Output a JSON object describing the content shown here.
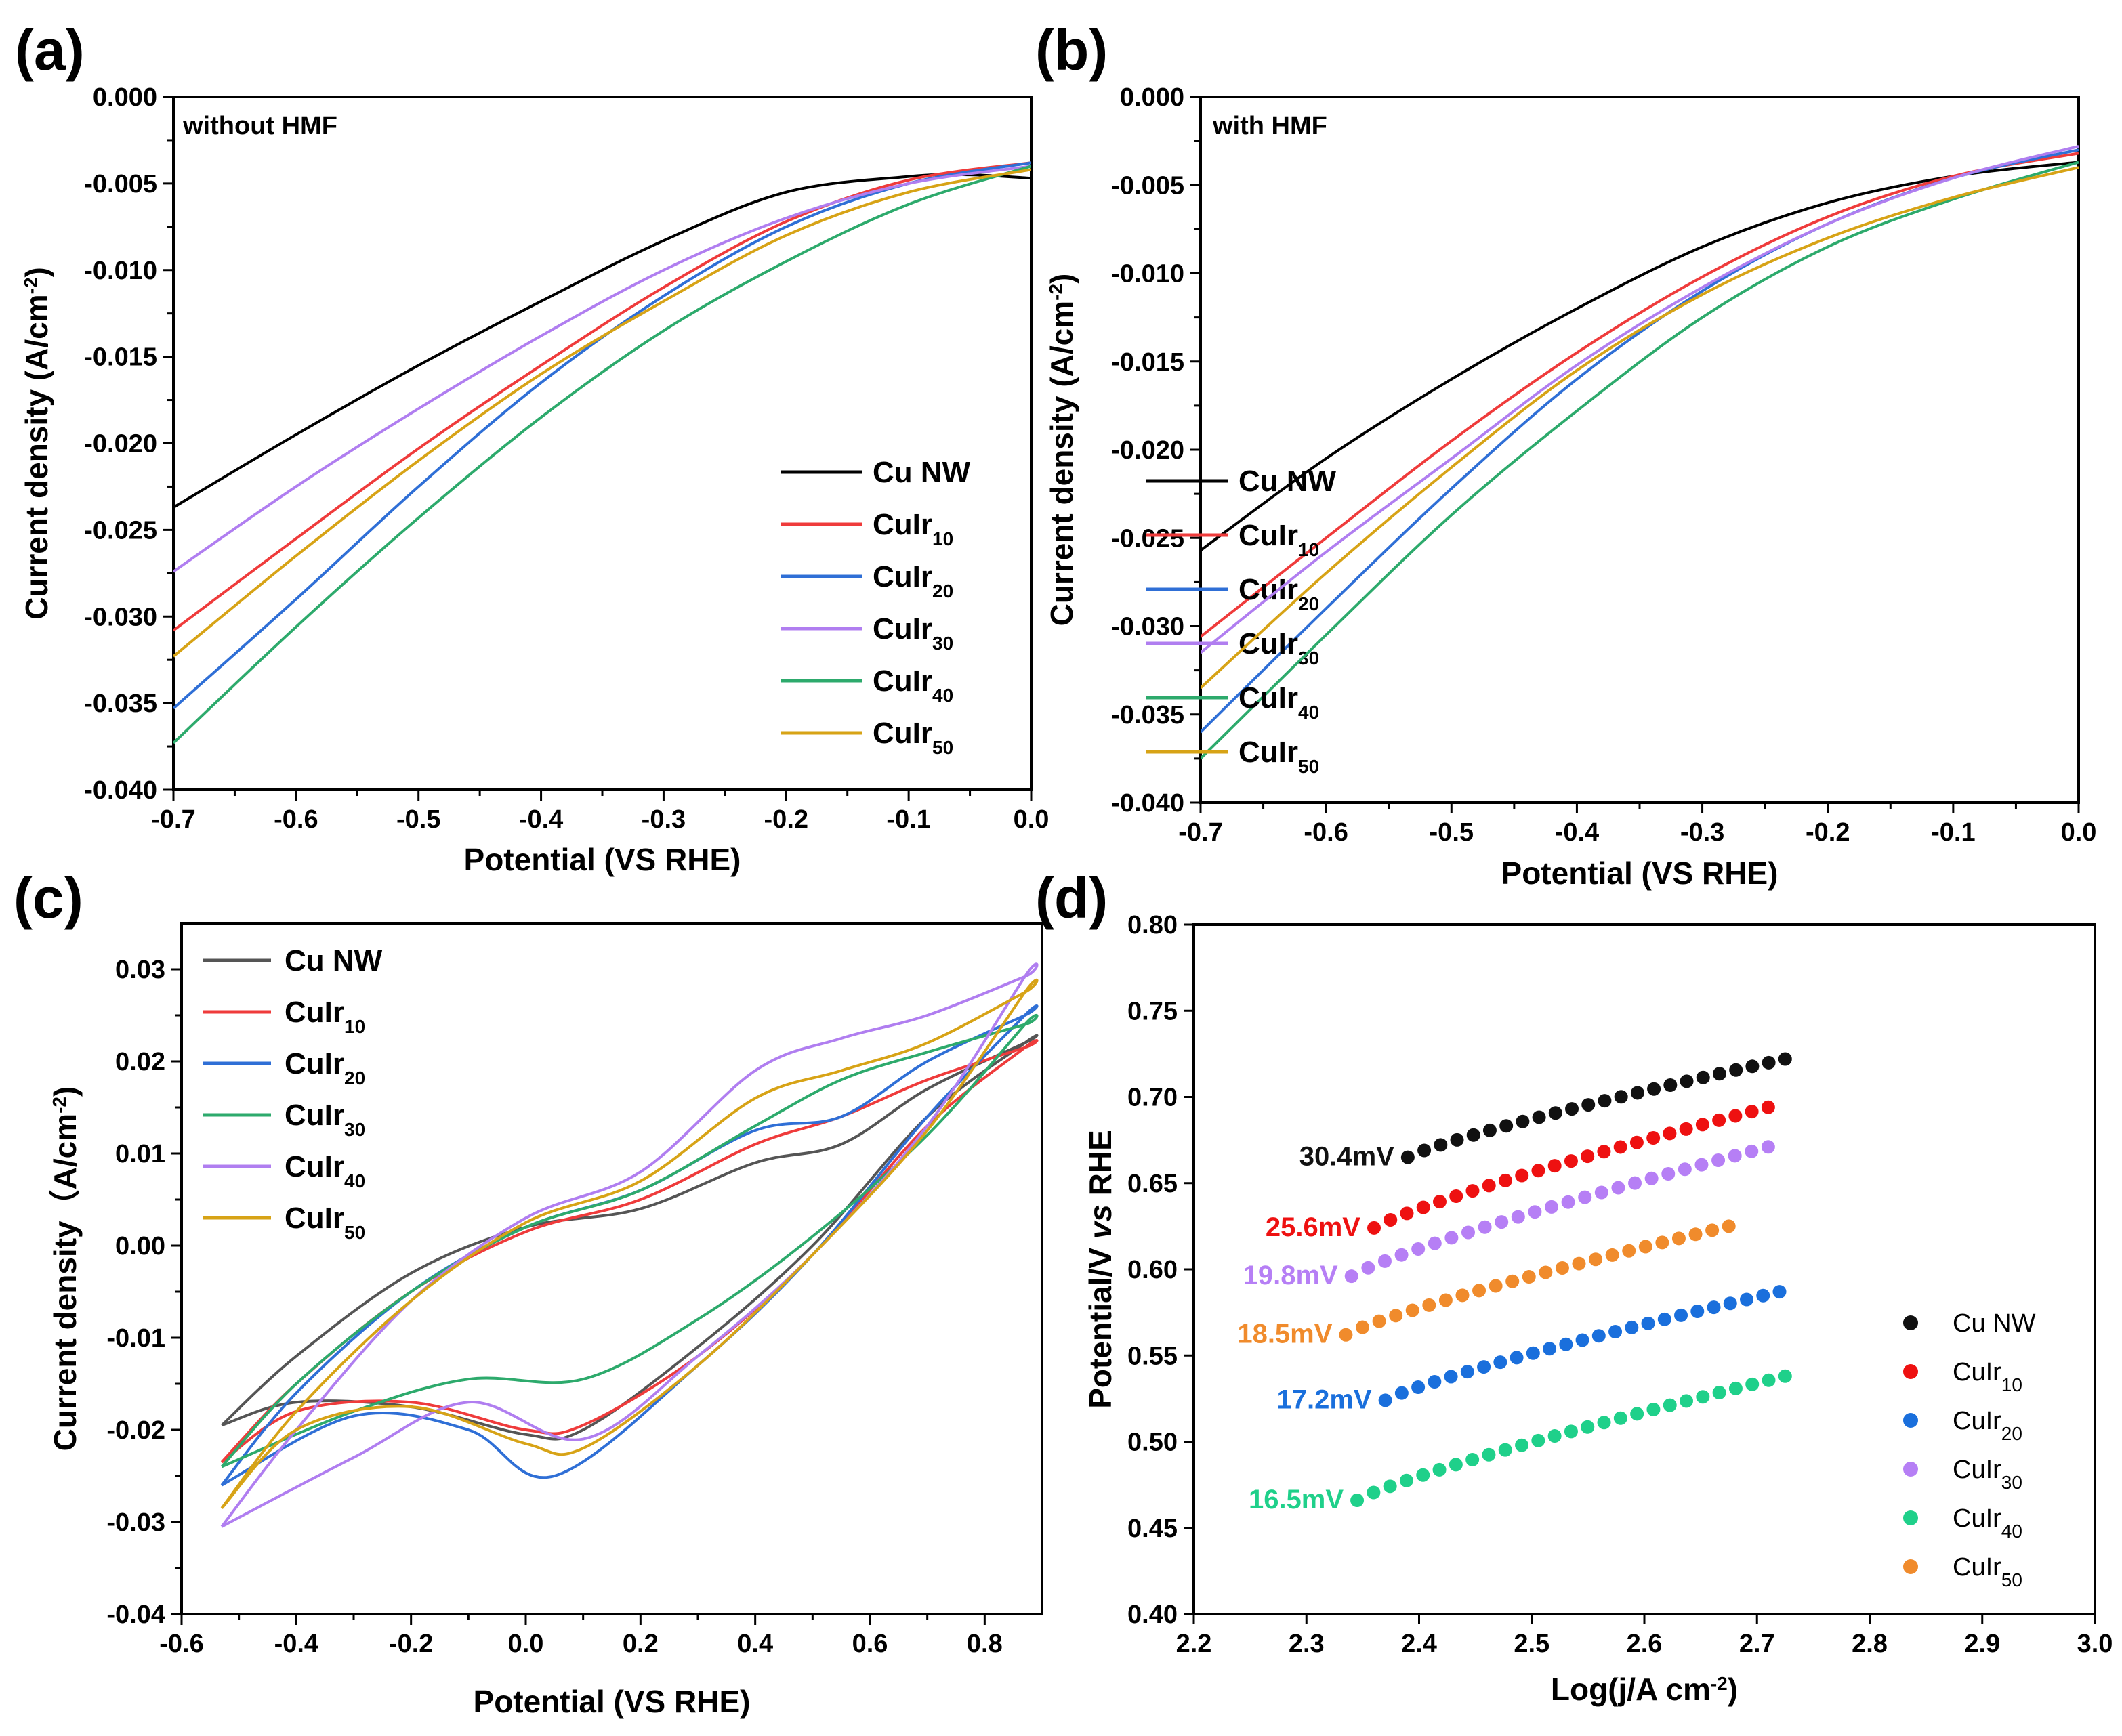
{
  "colors": {
    "Cu NW": "#000000",
    "CuIr10": "#ef3b3b",
    "CuIr20": "#2f6fd6",
    "CuIr30": "#b07ef0",
    "CuIr40": "#2daa6c",
    "CuIr50": "#d7a316",
    "d_black": "#111111",
    "d_red": "#ee1111",
    "d_blue": "#1a6fdc",
    "d_purple": "#b67ff5",
    "d_green": "#1fd08a",
    "d_orange": "#f08b2c",
    "c_black": "#555555"
  },
  "chart_data": [
    {
      "id": "a",
      "panel_label": "(a)",
      "type": "line",
      "title": "",
      "note": "without HMF",
      "xlabel": "Potential (VS RHE)",
      "ylabel": "Current density (A/cm",
      "ylabel_sup": "-2",
      "ylabel_end": ")",
      "xlim": [
        -0.7,
        0.0
      ],
      "ylim": [
        -0.04,
        0.0
      ],
      "xticks": [
        -0.7,
        -0.6,
        -0.5,
        -0.4,
        -0.3,
        -0.2,
        -0.1,
        0.0
      ],
      "xtick_labels": [
        "-0.7",
        "-0.6",
        "-0.5",
        "-0.4",
        "-0.3",
        "-0.2",
        "-0.1",
        "0.0"
      ],
      "yticks": [
        0.0,
        -0.005,
        -0.01,
        -0.015,
        -0.02,
        -0.025,
        -0.03,
        -0.035,
        -0.04
      ],
      "ytick_labels": [
        "0.000",
        "-0.005",
        "-0.010",
        "-0.015",
        "-0.020",
        "-0.025",
        "-0.030",
        "-0.035",
        "-0.040"
      ],
      "legend_position": "right-center",
      "series": [
        {
          "name": "Cu NW",
          "base": "Cu NW",
          "sub": "",
          "color_key": "Cu NW",
          "x": [
            -0.7,
            -0.6,
            -0.5,
            -0.4,
            -0.3,
            -0.2,
            -0.1,
            -0.05,
            0.0
          ],
          "y": [
            -0.0237,
            -0.0195,
            -0.0155,
            -0.0118,
            -0.0083,
            -0.0055,
            -0.0046,
            -0.0045,
            -0.0047
          ]
        },
        {
          "name": "CuIr10",
          "base": "CuIr",
          "sub": "10",
          "color_key": "CuIr10",
          "x": [
            -0.7,
            -0.6,
            -0.5,
            -0.4,
            -0.3,
            -0.2,
            -0.1,
            0.0
          ],
          "y": [
            -0.0308,
            -0.0255,
            -0.0203,
            -0.0155,
            -0.011,
            -0.0072,
            -0.0048,
            -0.0038
          ]
        },
        {
          "name": "CuIr20",
          "base": "CuIr",
          "sub": "20",
          "color_key": "CuIr20",
          "x": [
            -0.7,
            -0.6,
            -0.5,
            -0.4,
            -0.3,
            -0.2,
            -0.1,
            0.0
          ],
          "y": [
            -0.0353,
            -0.029,
            -0.0225,
            -0.0165,
            -0.0115,
            -0.0075,
            -0.005,
            -0.0038
          ]
        },
        {
          "name": "CuIr30",
          "base": "CuIr",
          "sub": "30",
          "color_key": "CuIr30",
          "x": [
            -0.7,
            -0.6,
            -0.5,
            -0.4,
            -0.3,
            -0.2,
            -0.1,
            0.0
          ],
          "y": [
            -0.0274,
            -0.0225,
            -0.018,
            -0.0138,
            -0.01,
            -0.007,
            -0.005,
            -0.004
          ]
        },
        {
          "name": "CuIr40",
          "base": "CuIr",
          "sub": "40",
          "color_key": "CuIr40",
          "x": [
            -0.7,
            -0.6,
            -0.5,
            -0.4,
            -0.3,
            -0.2,
            -0.1,
            0.0
          ],
          "y": [
            -0.0373,
            -0.0306,
            -0.0243,
            -0.0185,
            -0.0135,
            -0.0095,
            -0.0062,
            -0.004
          ]
        },
        {
          "name": "CuIr50",
          "base": "CuIr",
          "sub": "50",
          "color_key": "CuIr50",
          "x": [
            -0.7,
            -0.6,
            -0.5,
            -0.4,
            -0.3,
            -0.2,
            -0.1,
            0.0
          ],
          "y": [
            -0.0323,
            -0.0265,
            -0.021,
            -0.016,
            -0.0118,
            -0.008,
            -0.0055,
            -0.0042
          ]
        }
      ]
    },
    {
      "id": "b",
      "panel_label": "(b)",
      "type": "line",
      "title": "",
      "note": "with HMF",
      "xlabel": "Potential (VS RHE)",
      "ylabel": "Current density (A/cm",
      "ylabel_sup": "-2",
      "ylabel_end": ")",
      "xlim": [
        -0.7,
        0.0
      ],
      "ylim": [
        -0.04,
        0.0
      ],
      "xticks": [
        -0.7,
        -0.6,
        -0.5,
        -0.4,
        -0.3,
        -0.2,
        -0.1,
        0.0
      ],
      "xtick_labels": [
        "-0.7",
        "-0.6",
        "-0.5",
        "-0.4",
        "-0.3",
        "-0.2",
        "-0.1",
        "0.0"
      ],
      "yticks": [
        0.0,
        -0.005,
        -0.01,
        -0.015,
        -0.02,
        -0.025,
        -0.03,
        -0.035,
        -0.04
      ],
      "ytick_labels": [
        "0.000",
        "-0.005",
        "-0.010",
        "-0.015",
        "-0.020",
        "-0.025",
        "-0.030",
        "-0.035",
        "-0.040"
      ],
      "legend_position": "right-center",
      "series": [
        {
          "name": "Cu NW",
          "base": "Cu NW",
          "sub": "",
          "color_key": "Cu NW",
          "x": [
            -0.7,
            -0.6,
            -0.5,
            -0.4,
            -0.3,
            -0.2,
            -0.1,
            0.0
          ],
          "y": [
            -0.0257,
            -0.0205,
            -0.016,
            -0.012,
            -0.0085,
            -0.006,
            -0.0045,
            -0.0037
          ]
        },
        {
          "name": "CuIr10",
          "base": "CuIr",
          "sub": "10",
          "color_key": "CuIr10",
          "x": [
            -0.7,
            -0.6,
            -0.5,
            -0.4,
            -0.3,
            -0.2,
            -0.1,
            0.0
          ],
          "y": [
            -0.0306,
            -0.025,
            -0.0195,
            -0.0145,
            -0.0102,
            -0.0068,
            -0.0045,
            -0.0032
          ]
        },
        {
          "name": "CuIr20",
          "base": "CuIr",
          "sub": "20",
          "color_key": "CuIr20",
          "x": [
            -0.7,
            -0.6,
            -0.5,
            -0.4,
            -0.3,
            -0.2,
            -0.1,
            0.0
          ],
          "y": [
            -0.036,
            -0.029,
            -0.0222,
            -0.016,
            -0.011,
            -0.0072,
            -0.0046,
            -0.003
          ]
        },
        {
          "name": "CuIr30",
          "base": "CuIr",
          "sub": "30",
          "color_key": "CuIr30",
          "x": [
            -0.7,
            -0.6,
            -0.5,
            -0.4,
            -0.3,
            -0.2,
            -0.1,
            0.0
          ],
          "y": [
            -0.0315,
            -0.0258,
            -0.0205,
            -0.0152,
            -0.0108,
            -0.0072,
            -0.0046,
            -0.0028
          ]
        },
        {
          "name": "CuIr40",
          "base": "CuIr",
          "sub": "40",
          "color_key": "CuIr40",
          "x": [
            -0.7,
            -0.6,
            -0.5,
            -0.4,
            -0.3,
            -0.2,
            -0.1,
            0.0
          ],
          "y": [
            -0.0375,
            -0.0305,
            -0.0237,
            -0.0178,
            -0.0125,
            -0.0085,
            -0.0058,
            -0.0037
          ]
        },
        {
          "name": "CuIr50",
          "base": "CuIr",
          "sub": "50",
          "color_key": "CuIr50",
          "x": [
            -0.7,
            -0.6,
            -0.5,
            -0.4,
            -0.3,
            -0.2,
            -0.1,
            0.0
          ],
          "y": [
            -0.0335,
            -0.027,
            -0.021,
            -0.0155,
            -0.0112,
            -0.008,
            -0.0057,
            -0.004
          ]
        }
      ]
    },
    {
      "id": "c",
      "panel_label": "(c)",
      "type": "line",
      "title": "",
      "xlabel": "Potential (VS RHE)",
      "ylabel": "Current density（A/cm",
      "ylabel_sup": "-2",
      "ylabel_end": ")",
      "xlim": [
        -0.6,
        0.9
      ],
      "ylim": [
        -0.04,
        0.035
      ],
      "xticks": [
        -0.6,
        -0.4,
        -0.2,
        0.0,
        0.2,
        0.4,
        0.6,
        0.8
      ],
      "xtick_labels": [
        "-0.6",
        "-0.4",
        "-0.2",
        "0.0",
        "0.2",
        "0.4",
        "0.6",
        "0.8"
      ],
      "yticks": [
        0.03,
        0.02,
        0.01,
        0.0,
        -0.01,
        -0.02,
        -0.03,
        -0.04
      ],
      "ytick_labels": [
        "0.03",
        "0.02",
        "0.01",
        "0.00",
        "-0.01",
        "-0.02",
        "-0.03",
        "-0.04"
      ],
      "legend_position": "top-left",
      "series": [
        {
          "name": "Cu NW",
          "base": "Cu NW",
          "sub": "",
          "color_key": "c_black",
          "x": [
            -0.53,
            -0.4,
            -0.2,
            0.0,
            0.2,
            0.4,
            0.55,
            0.7,
            0.87,
            0.87,
            0.7,
            0.5,
            0.3,
            0.1,
            0.0,
            -0.2,
            -0.4,
            -0.53
          ],
          "y": [
            -0.0195,
            -0.012,
            -0.003,
            0.002,
            0.004,
            0.009,
            0.011,
            0.017,
            0.022,
            0.022,
            0.014,
            0.0,
            -0.011,
            -0.02,
            -0.0205,
            -0.0175,
            -0.017,
            -0.0195
          ]
        },
        {
          "name": "CuIr10",
          "base": "CuIr",
          "sub": "10",
          "color_key": "CuIr10",
          "x": [
            -0.53,
            -0.4,
            -0.2,
            0.0,
            0.2,
            0.4,
            0.55,
            0.7,
            0.87,
            0.87,
            0.7,
            0.5,
            0.3,
            0.1,
            0.0,
            -0.2,
            -0.4,
            -0.53
          ],
          "y": [
            -0.0235,
            -0.015,
            -0.005,
            0.0015,
            0.005,
            0.011,
            0.014,
            0.018,
            0.0215,
            0.0215,
            0.013,
            -0.001,
            -0.012,
            -0.0195,
            -0.02,
            -0.017,
            -0.018,
            -0.0235
          ]
        },
        {
          "name": "CuIr20",
          "base": "CuIr",
          "sub": "20",
          "color_key": "CuIr20",
          "x": [
            -0.53,
            -0.4,
            -0.2,
            0.0,
            0.2,
            0.4,
            0.55,
            0.7,
            0.87,
            0.87,
            0.7,
            0.5,
            0.3,
            0.05,
            -0.1,
            -0.3,
            -0.53
          ],
          "y": [
            -0.026,
            -0.016,
            -0.005,
            0.002,
            0.006,
            0.0125,
            0.014,
            0.02,
            0.025,
            0.025,
            0.014,
            -0.001,
            -0.013,
            -0.025,
            -0.02,
            -0.0185,
            -0.026
          ]
        },
        {
          "name": "CuIr30",
          "base": "CuIr",
          "sub": "30",
          "color_key": "CuIr40",
          "x": [
            -0.53,
            -0.4,
            -0.2,
            0.0,
            0.2,
            0.4,
            0.55,
            0.7,
            0.87,
            0.87,
            0.7,
            0.5,
            0.3,
            0.1,
            -0.1,
            -0.3,
            -0.53
          ],
          "y": [
            -0.024,
            -0.015,
            -0.005,
            0.002,
            0.006,
            0.013,
            0.018,
            0.021,
            0.024,
            0.024,
            0.012,
            0.001,
            -0.008,
            -0.0145,
            -0.0145,
            -0.018,
            -0.024
          ]
        },
        {
          "name": "CuIr40",
          "base": "CuIr",
          "sub": "40",
          "color_key": "CuIr30",
          "x": [
            -0.53,
            -0.4,
            -0.2,
            0.0,
            0.2,
            0.4,
            0.55,
            0.7,
            0.87,
            0.87,
            0.7,
            0.5,
            0.3,
            0.1,
            -0.1,
            -0.3,
            -0.53
          ],
          "y": [
            -0.0305,
            -0.02,
            -0.006,
            0.003,
            0.008,
            0.019,
            0.0225,
            0.025,
            0.0292,
            0.0292,
            0.013,
            -0.001,
            -0.012,
            -0.021,
            -0.017,
            -0.023,
            -0.0305
          ]
        },
        {
          "name": "CuIr50",
          "base": "CuIr",
          "sub": "50",
          "color_key": "CuIr50",
          "x": [
            -0.53,
            -0.4,
            -0.2,
            0.0,
            0.2,
            0.4,
            0.55,
            0.7,
            0.87,
            0.87,
            0.7,
            0.5,
            0.3,
            0.1,
            0.0,
            -0.2,
            -0.4,
            -0.53
          ],
          "y": [
            -0.0285,
            -0.018,
            -0.006,
            0.0025,
            0.007,
            0.016,
            0.019,
            0.022,
            0.0275,
            0.0275,
            0.0125,
            -0.001,
            -0.013,
            -0.022,
            -0.0215,
            -0.0175,
            -0.02,
            -0.0285
          ]
        }
      ]
    },
    {
      "id": "d",
      "panel_label": "(d)",
      "type": "scatter",
      "title": "",
      "xlabel": "Log(j/A cm",
      "xlabel_sup": "-2",
      "xlabel_end": ")",
      "ylabel_prefix": "Potential/V ",
      "ylabel_italic": "vs",
      "ylabel_suffix": " RHE",
      "xlim": [
        2.2,
        3.0
      ],
      "ylim": [
        0.4,
        0.8
      ],
      "xticks": [
        2.2,
        2.3,
        2.4,
        2.5,
        2.6,
        2.7,
        2.8,
        2.9,
        3.0
      ],
      "xtick_labels": [
        "2.2",
        "2.3",
        "2.4",
        "2.5",
        "2.6",
        "2.7",
        "2.8",
        "2.9",
        "3.0"
      ],
      "yticks": [
        0.8,
        0.75,
        0.7,
        0.65,
        0.6,
        0.55,
        0.5,
        0.45,
        0.4
      ],
      "ytick_labels": [
        "0.80",
        "0.75",
        "0.70",
        "0.65",
        "0.60",
        "0.55",
        "0.50",
        "0.45",
        "0.40"
      ],
      "legend_position": "bottom-right",
      "series": [
        {
          "name": "Cu NW",
          "base": "Cu NW",
          "sub": "",
          "color_key": "d_black",
          "slope_label": "30.4mV",
          "x_start": 2.39,
          "x_end": 2.725,
          "y_start": 0.665,
          "y_end": 0.722,
          "n": 24
        },
        {
          "name": "CuIr10",
          "base": "CuIr",
          "sub": "10",
          "color_key": "d_red",
          "slope_label": "25.6mV",
          "x_start": 2.36,
          "x_end": 2.71,
          "y_start": 0.624,
          "y_end": 0.694,
          "n": 25
        },
        {
          "name": "CuIr20",
          "base": "CuIr",
          "sub": "20",
          "color_key": "d_blue",
          "slope_label": "17.2mV",
          "x_start": 2.37,
          "x_end": 2.72,
          "y_start": 0.524,
          "y_end": 0.587,
          "n": 25
        },
        {
          "name": "CuIr30",
          "base": "CuIr",
          "sub": "30",
          "color_key": "d_purple",
          "slope_label": "19.8mV",
          "x_start": 2.34,
          "x_end": 2.71,
          "y_start": 0.596,
          "y_end": 0.671,
          "n": 26
        },
        {
          "name": "CuIr40",
          "base": "CuIr",
          "sub": "40",
          "color_key": "d_green",
          "slope_label": "16.5mV",
          "x_start": 2.345,
          "x_end": 2.725,
          "y_start": 0.466,
          "y_end": 0.538,
          "n": 27
        },
        {
          "name": "CuIr50",
          "base": "CuIr",
          "sub": "50",
          "color_key": "d_orange",
          "slope_label": "18.5mV",
          "x_start": 2.335,
          "x_end": 2.675,
          "y_start": 0.562,
          "y_end": 0.625,
          "n": 24
        }
      ]
    }
  ]
}
